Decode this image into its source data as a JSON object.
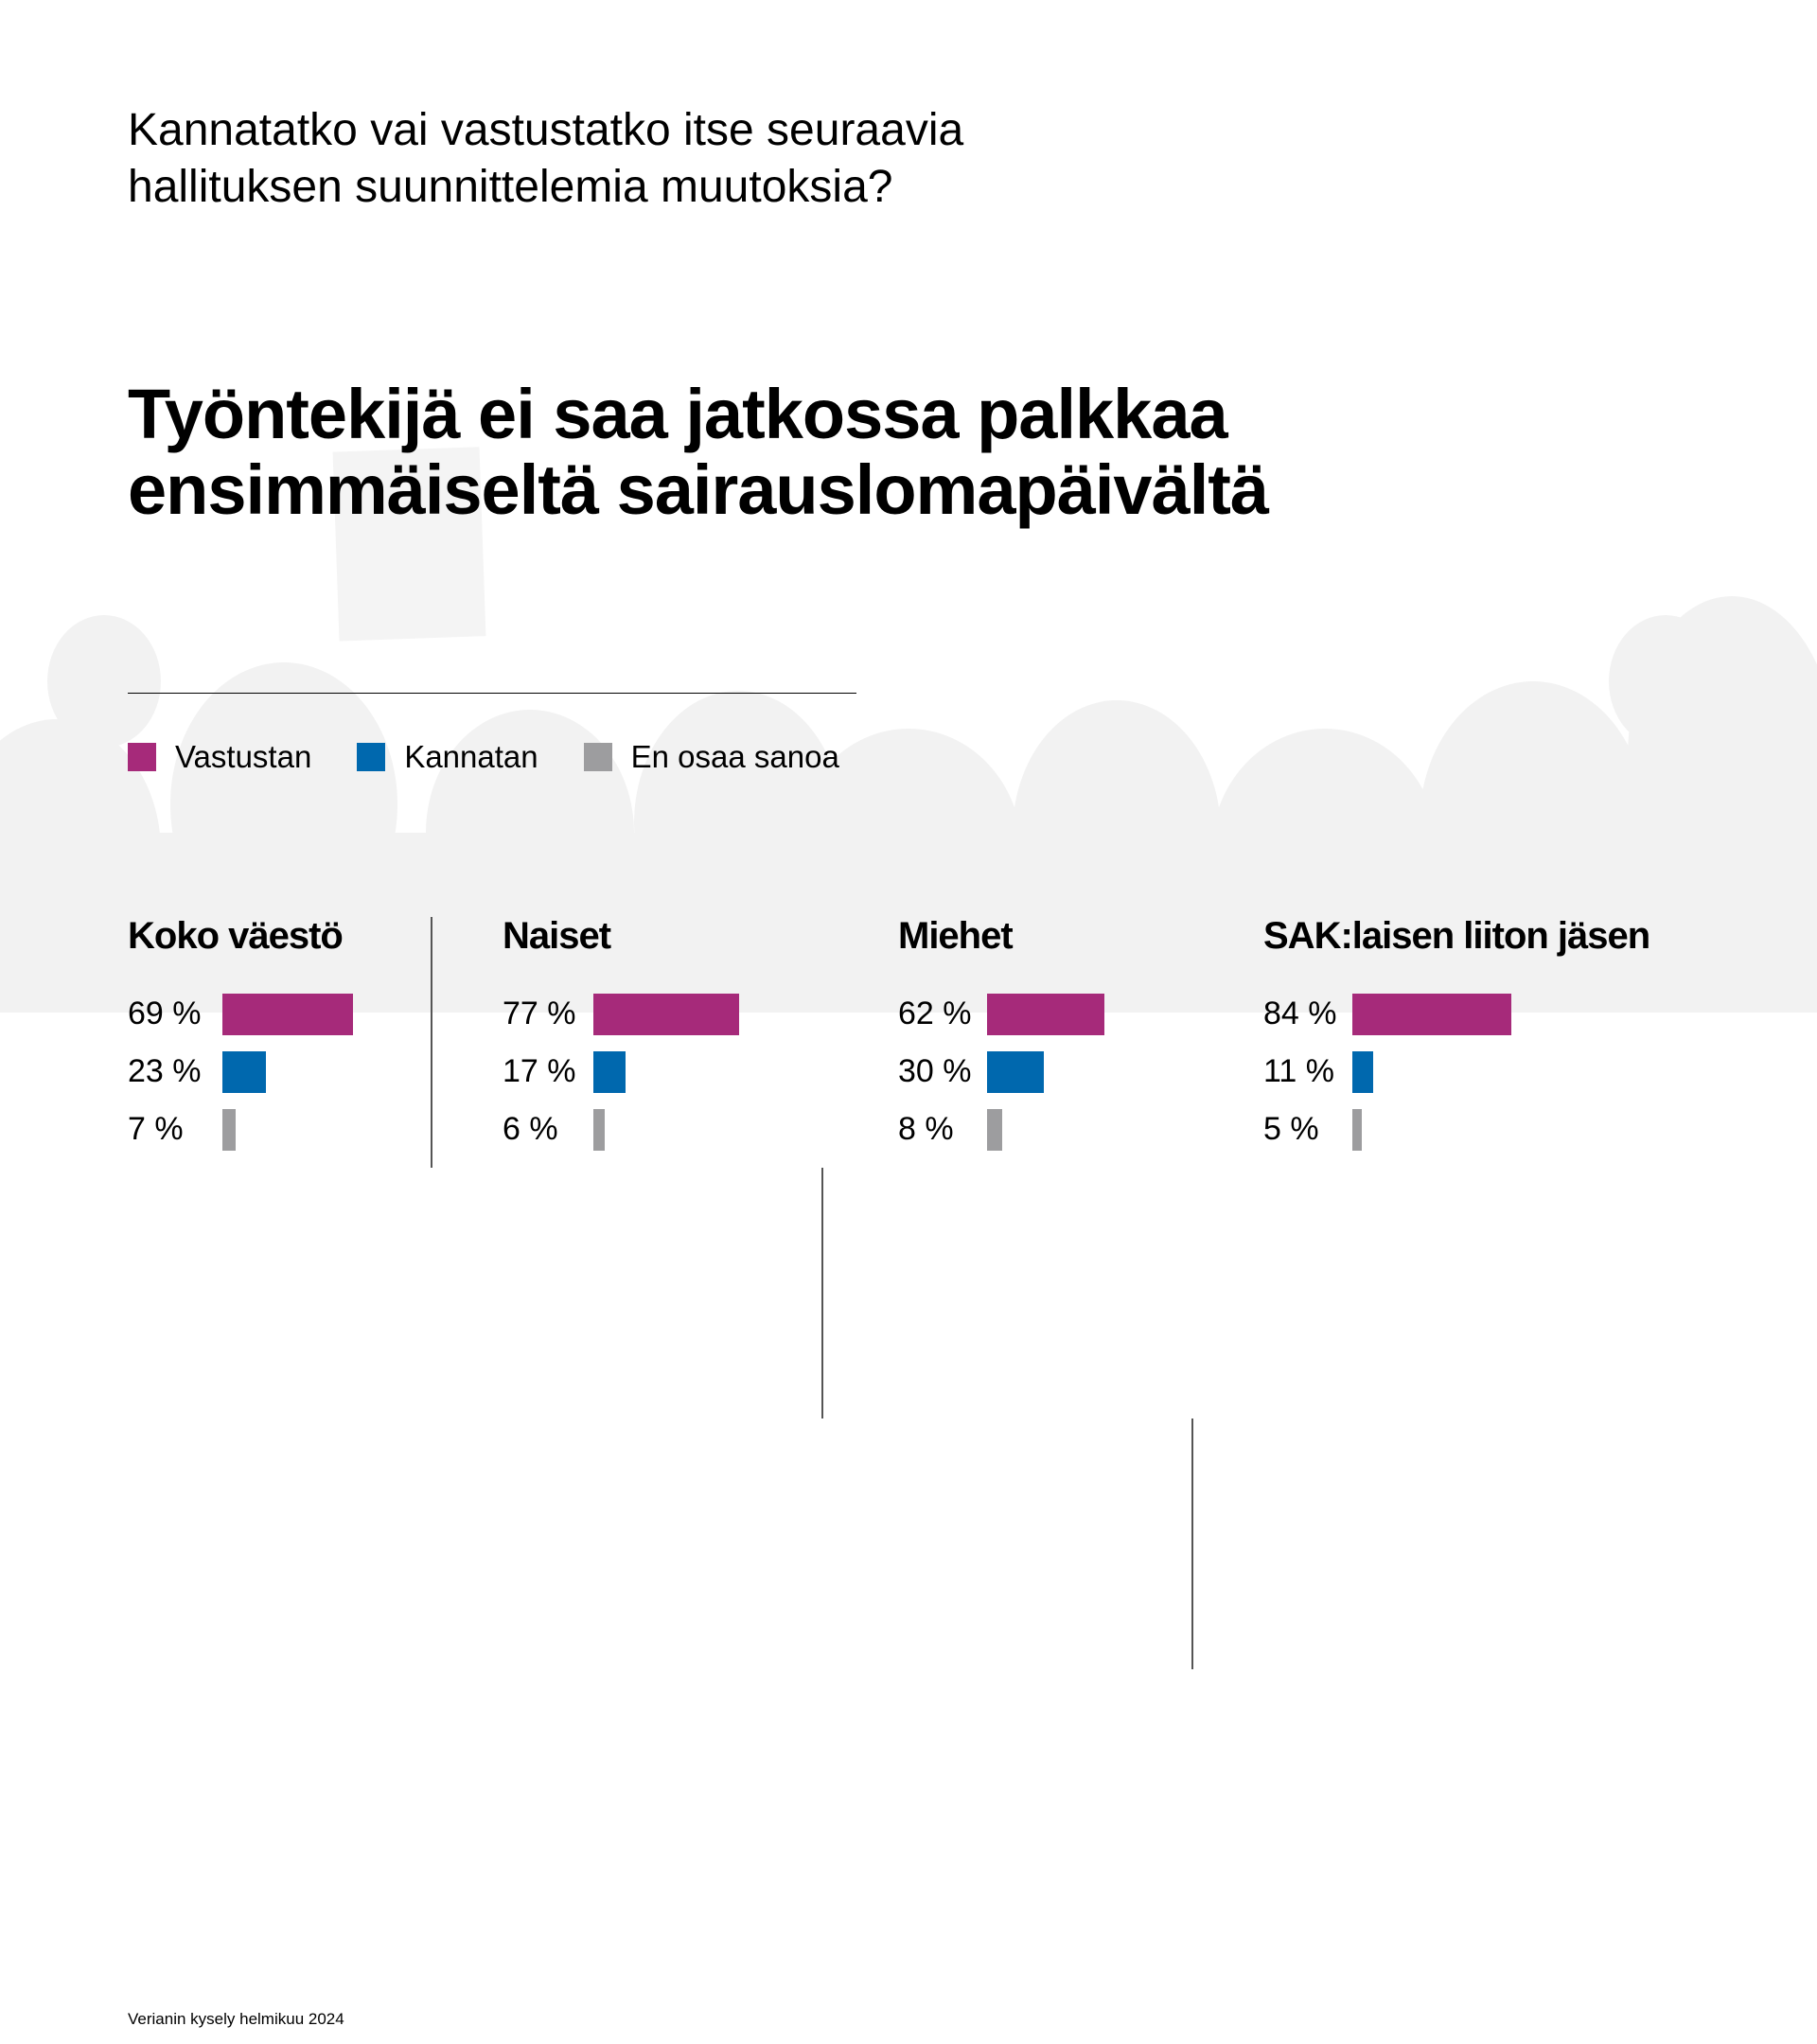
{
  "question": "Kannatatko vai vastustatko itse seuraavia hallituksen suunnittelemia muutoksia?",
  "heading": "Työntekijä ei saa jatkossa palkkaa ensimmäiseltä sairauslomapäivältä",
  "source": "Verianin kysely helmikuu 2024",
  "colors": {
    "oppose": "#a62a7a",
    "support": "#0068ae",
    "dontknow": "#9d9d9f"
  },
  "chart_data": {
    "type": "bar",
    "orientation": "horizontal",
    "title": "Työntekijä ei saa jatkossa palkkaa ensimmäiseltä sairauslomapäivältä",
    "legend": [
      "Vastustan",
      "Kannatan",
      "En osaa sanoa"
    ],
    "legend_position": "top-left",
    "unit": "%",
    "groups": [
      {
        "name": "Koko väestö",
        "values": [
          69,
          23,
          7
        ],
        "labels": [
          "69 %",
          "23 %",
          "7 %"
        ]
      },
      {
        "name": "Naiset",
        "values": [
          77,
          17,
          6
        ],
        "labels": [
          "77 %",
          "17 %",
          "6 %"
        ]
      },
      {
        "name": "Miehet",
        "values": [
          62,
          30,
          8
        ],
        "labels": [
          "62 %",
          "30 %",
          "8 %"
        ]
      },
      {
        "name": "SAK:laisen liiton jäsen",
        "values": [
          84,
          11,
          5
        ],
        "labels": [
          "84 %",
          "11 %",
          "5 %"
        ]
      }
    ]
  }
}
